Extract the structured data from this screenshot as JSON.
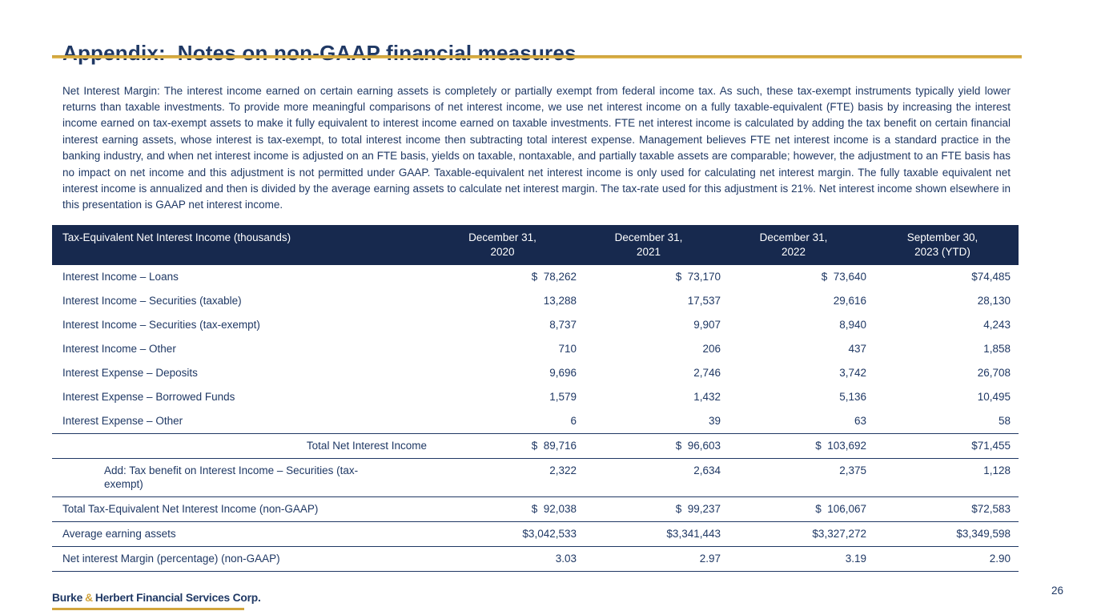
{
  "slide": {
    "title": "Appendix:  Notes on non-GAAP financial measures",
    "page_number": "26"
  },
  "intro_paragraph": "Net Interest Margin: The interest income earned on certain earning assets is completely or partially exempt from federal income tax. As such, these tax-exempt instruments typically yield lower returns than taxable investments. To provide more meaningful comparisons of net interest income, we use net interest income on a fully taxable-equivalent (FTE) basis by increasing the interest income earned on tax-exempt assets to make it fully equivalent to interest income earned on taxable investments. FTE net interest income is calculated by adding the tax benefit on certain financial interest earning assets, whose interest is tax-exempt, to total interest income then subtracting total interest expense. Management believes FTE net interest income is a standard practice in the banking industry, and when net interest income is adjusted on an FTE basis, yields on taxable, nontaxable, and partially taxable assets are comparable; however, the adjustment to an FTE basis has no impact on net income and this adjustment is not permitted under GAAP. Taxable-equivalent net interest income is only used for calculating net interest margin. The fully taxable equivalent net interest income is annualized and then is divided by the average earning assets to calculate net interest margin. The tax-rate used for this adjustment is 21%. Net interest income shown elsewhere in this presentation is GAAP net interest income.",
  "table": {
    "headers": [
      {
        "lines": [
          "Tax-Equivalent Net Interest Income (thousands)"
        ]
      },
      {
        "lines": [
          "December 31,",
          "2020"
        ]
      },
      {
        "lines": [
          "December 31,",
          "2021"
        ]
      },
      {
        "lines": [
          "December 31,",
          "2022"
        ]
      },
      {
        "lines": [
          "September 30,",
          "2023 (YTD)"
        ]
      }
    ],
    "rows": [
      {
        "label": "Interest Income – Loans",
        "values": [
          "$  78,262",
          "$  73,170",
          "$  73,640",
          "$74,485"
        ],
        "style": "plain",
        "border_bottom": false
      },
      {
        "label": "Interest Income – Securities (taxable)",
        "values": [
          "13,288",
          "17,537",
          "29,616",
          "28,130"
        ],
        "style": "plain",
        "border_bottom": false
      },
      {
        "label": "Interest Income – Securities (tax-exempt)",
        "values": [
          "8,737",
          "9,907",
          "8,940",
          "4,243"
        ],
        "style": "plain",
        "border_bottom": false
      },
      {
        "label": "Interest Income – Other",
        "values": [
          "710",
          "206",
          "437",
          "1,858"
        ],
        "style": "plain",
        "border_bottom": false
      },
      {
        "label": "Interest Expense – Deposits",
        "values": [
          "9,696",
          "2,746",
          "3,742",
          "26,708"
        ],
        "style": "plain",
        "border_bottom": false
      },
      {
        "label": "Interest Expense – Borrowed Funds",
        "values": [
          "1,579",
          "1,432",
          "5,136",
          "10,495"
        ],
        "style": "plain",
        "border_bottom": false
      },
      {
        "label": "Interest Expense – Other",
        "values": [
          "6",
          "39",
          "63",
          "58"
        ],
        "style": "plain",
        "border_bottom": true
      },
      {
        "label": "Total Net Interest Income",
        "values": [
          "$  89,716",
          "$  96,603",
          "$  103,692",
          "$71,455"
        ],
        "style": "subtotal",
        "border_bottom": true
      },
      {
        "label": "Add: Tax benefit on Interest Income – Securities (tax-exempt)",
        "values": [
          "2,322",
          "2,634",
          "2,375",
          "1,128"
        ],
        "style": "indent",
        "border_bottom": true
      },
      {
        "label": "Total Tax-Equivalent Net Interest Income (non-GAAP)",
        "values": [
          "$  92,038",
          "$  99,237",
          "$  106,067",
          "$72,583"
        ],
        "style": "plain",
        "border_bottom": true
      },
      {
        "label": "Average earning assets",
        "values": [
          "$3,042,533",
          "$3,341,443",
          "$3,327,272",
          "$3,349,598"
        ],
        "style": "plain",
        "border_bottom": true
      },
      {
        "label": "Net interest Margin (percentage) (non-GAAP)",
        "values": [
          "3.03",
          "2.97",
          "3.19",
          "2.90"
        ],
        "style": "plain",
        "border_bottom": true
      }
    ]
  },
  "footer": {
    "logo_part1": "Burke",
    "logo_amp": "&",
    "logo_part2": "Herbert Financial Services Corp."
  },
  "colors": {
    "navy_text": "#1F3864",
    "header_bg": "#17294E",
    "accent_gold": "#D2A43C"
  }
}
